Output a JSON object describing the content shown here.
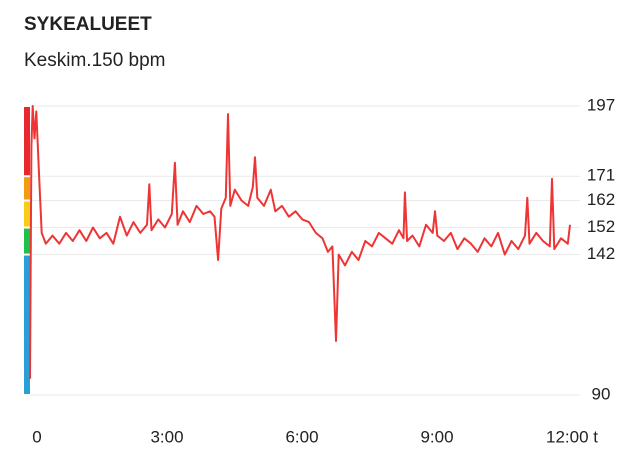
{
  "chart_data": {
    "type": "line",
    "title": "SYKEALUEET",
    "subtitle": "Keskim.150 bpm",
    "x": [
      0,
      0.03,
      0.06,
      0.1,
      0.14,
      0.2,
      0.26,
      0.35,
      0.5,
      0.65,
      0.8,
      0.95,
      1.1,
      1.25,
      1.4,
      1.55,
      1.7,
      1.85,
      2.0,
      2.15,
      2.3,
      2.45,
      2.6,
      2.65,
      2.7,
      2.85,
      3.0,
      3.15,
      3.22,
      3.28,
      3.4,
      3.55,
      3.7,
      3.85,
      4.0,
      4.1,
      4.18,
      4.25,
      4.35,
      4.4,
      4.45,
      4.55,
      4.7,
      4.85,
      4.95,
      5.0,
      5.05,
      5.2,
      5.35,
      5.45,
      5.6,
      5.75,
      5.9,
      6.05,
      6.2,
      6.35,
      6.5,
      6.62,
      6.72,
      6.8,
      6.86,
      7.0,
      7.15,
      7.3,
      7.45,
      7.6,
      7.75,
      7.9,
      8.05,
      8.2,
      8.3,
      8.33,
      8.38,
      8.5,
      8.65,
      8.8,
      8.95,
      9.0,
      9.05,
      9.2,
      9.35,
      9.5,
      9.65,
      9.8,
      9.95,
      10.1,
      10.25,
      10.4,
      10.55,
      10.7,
      10.85,
      11.0,
      11.05,
      11.1,
      11.25,
      11.4,
      11.55,
      11.6,
      11.65,
      11.8,
      11.95,
      12.0
    ],
    "series": [
      {
        "color": "#ee3535",
        "values": [
          96,
          182,
          197,
          185,
          195,
          172,
          150,
          146,
          149,
          146,
          150,
          147,
          151,
          147,
          152,
          148,
          150,
          146,
          156,
          149,
          154,
          150,
          153,
          168,
          151,
          155,
          152,
          157,
          176,
          153,
          158,
          154,
          160,
          157,
          158,
          156,
          140,
          159,
          163,
          194,
          160,
          166,
          162,
          160,
          167,
          178,
          163,
          160,
          166,
          158,
          160,
          156,
          158,
          155,
          154,
          150,
          148,
          143,
          145,
          110,
          142,
          138,
          143,
          140,
          147,
          145,
          150,
          148,
          146,
          151,
          148,
          165,
          147,
          149,
          145,
          153,
          150,
          158,
          149,
          147,
          150,
          144,
          148,
          146,
          143,
          148,
          145,
          150,
          142,
          147,
          144,
          149,
          163,
          146,
          150,
          147,
          145,
          170,
          144,
          148,
          146,
          153
        ]
      }
    ],
    "xlim": [
      0,
      12
    ],
    "xticks": [
      0,
      {
        "value": 3,
        "label": "3:00"
      },
      {
        "value": 6,
        "label": "6:00"
      },
      {
        "value": 9,
        "label": "9:00"
      },
      {
        "value": 12,
        "label": "12:00 t"
      }
    ],
    "ylim": [
      90,
      197
    ],
    "yticks": [
      90,
      142,
      152,
      162,
      171,
      197
    ],
    "zone_colors": [
      "#2a9fd6",
      "#22c04a",
      "#f8cc1b",
      "#f39c12",
      "#e8272f"
    ],
    "grid": true
  }
}
